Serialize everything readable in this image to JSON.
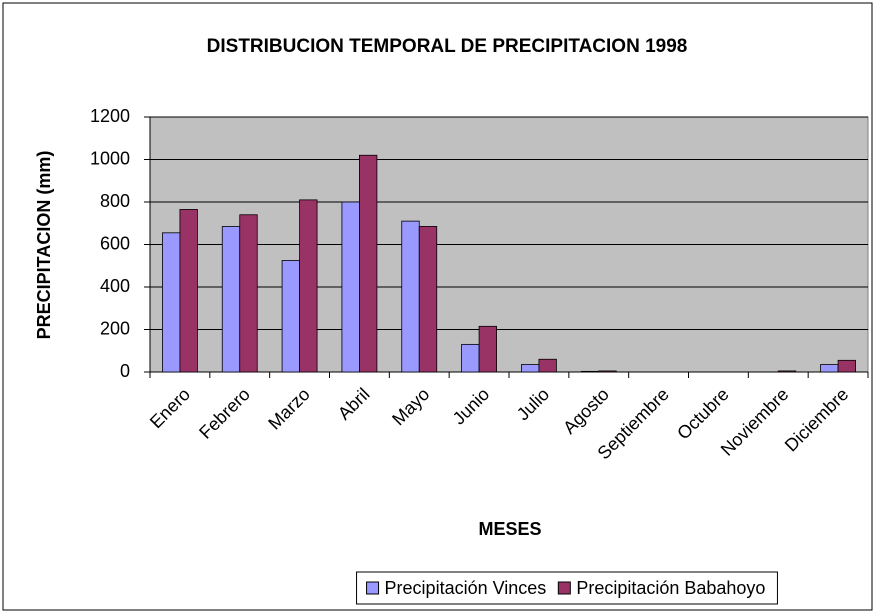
{
  "chart_data": {
    "type": "bar",
    "title": "DISTRIBUCION TEMPORAL DE PRECIPITACION 1998",
    "x_label": "MESES",
    "y_label": "PRECIPITACION (mm)",
    "categories": [
      "Enero",
      "Febrero",
      "Marzo",
      "Abril",
      "Mayo",
      "Junio",
      "Julio",
      "Agosto",
      "Septiembre",
      "Octubre",
      "Noviembre",
      "Diciembre"
    ],
    "series": [
      {
        "name": "Precipitación Vinces",
        "color": "#9999ff",
        "values": [
          655,
          685,
          525,
          800,
          710,
          130,
          35,
          3,
          0,
          0,
          0,
          35
        ]
      },
      {
        "name": "Precipitación Babahoyo",
        "color": "#993366",
        "values": [
          765,
          740,
          810,
          1020,
          685,
          215,
          60,
          5,
          0,
          0,
          5,
          55
        ]
      }
    ],
    "ylim": [
      0,
      1200
    ],
    "yticks": [
      0,
      200,
      400,
      600,
      800,
      1000,
      1200
    ],
    "grid": true,
    "legend": "bottom"
  }
}
